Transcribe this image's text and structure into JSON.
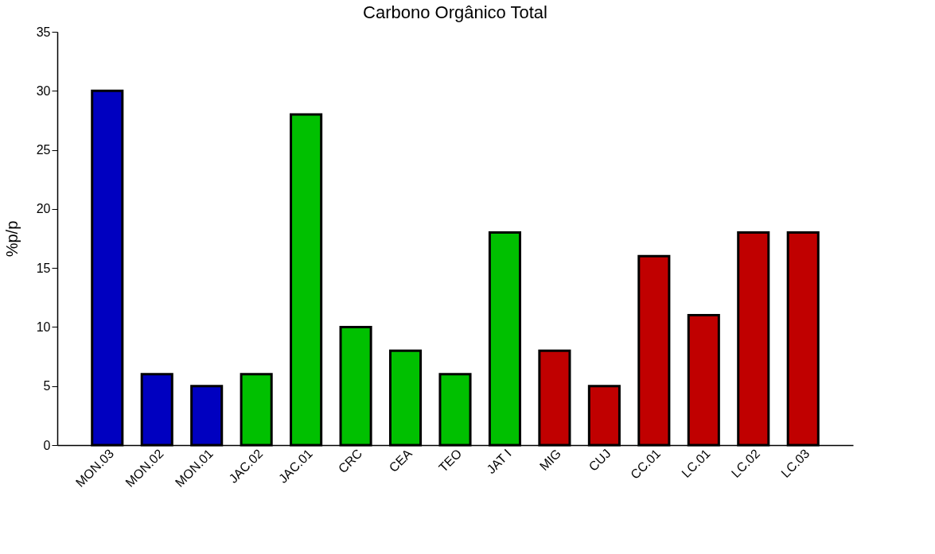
{
  "chart_data": {
    "type": "bar",
    "title": "Carbono Orgânico Total",
    "ylabel": "%p/p",
    "categories": [
      "MON.03",
      "MON.02",
      "MON.01",
      "JAC.02",
      "JAC.01",
      "CRC",
      "CEA",
      "TEO",
      "JAT I",
      "MIG",
      "CUJ",
      "CC.01",
      "LC.01",
      "LC.02",
      "LC.03"
    ],
    "values": [
      30,
      6,
      5,
      6,
      28,
      10,
      8,
      6,
      18,
      8,
      5,
      16,
      11,
      18,
      18
    ],
    "colors": [
      "#0000c0",
      "#0000c0",
      "#0000c0",
      "#00c000",
      "#00c000",
      "#00c000",
      "#00c000",
      "#00c000",
      "#00c000",
      "#c00000",
      "#c00000",
      "#c00000",
      "#c00000",
      "#c00000",
      "#c00000"
    ],
    "ylim": [
      0,
      35
    ],
    "yticks": [
      0,
      5,
      10,
      15,
      20,
      25,
      30,
      35
    ],
    "grid": false
  }
}
